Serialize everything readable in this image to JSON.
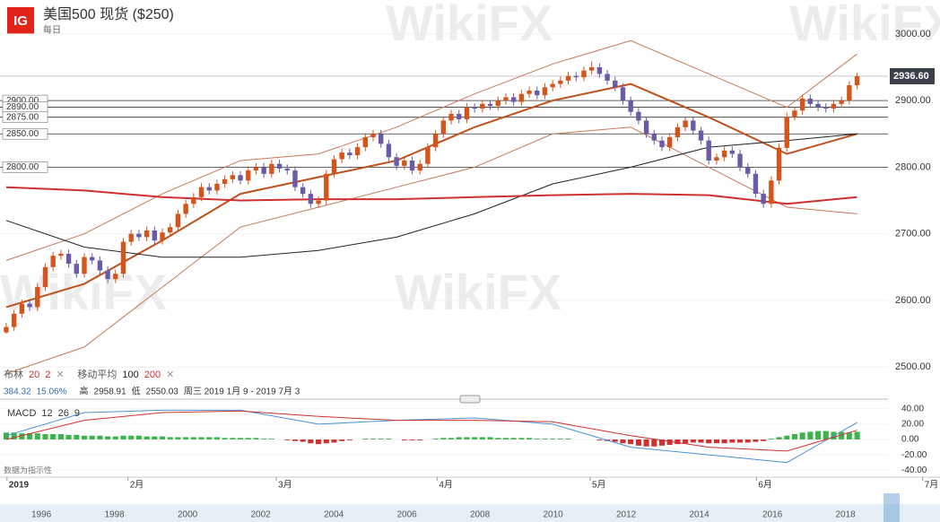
{
  "header": {
    "logo": "IG",
    "title": "美国500 现货 ($250)",
    "interval": "每日"
  },
  "watermark": "WikiFX",
  "chart_data": [
    {
      "type": "candlestick",
      "up_color": "#d4541c",
      "down_color": "#6a5aa8",
      "xlim": [
        -0.8,
        118.7
      ],
      "ylim": [
        2472,
        3051
      ],
      "xticks": [
        {
          "value": 0.1,
          "label": "2019"
        },
        {
          "value": 15.6,
          "label": "2月"
        },
        {
          "value": 34.6,
          "label": "3月"
        },
        {
          "value": 55.2,
          "label": "4月"
        },
        {
          "value": 74.8,
          "label": "5月"
        },
        {
          "value": 96.1,
          "label": "6月"
        },
        {
          "value": 117.4,
          "label": "7月"
        }
      ],
      "yticks": [
        {
          "value": 3000,
          "label": "3000.00"
        },
        {
          "value": 2900,
          "label": "2900.00"
        },
        {
          "value": 2800,
          "label": "2800.00"
        },
        {
          "value": 2700,
          "label": "2700.00"
        },
        {
          "value": 2600,
          "label": "2600.00"
        },
        {
          "value": 2500,
          "label": "2500.00"
        }
      ],
      "hlines": [
        {
          "value": 2900,
          "label": "2900.00"
        },
        {
          "value": 2890,
          "label": "2890.00"
        },
        {
          "value": 2875,
          "label": "2875.00"
        },
        {
          "value": 2850,
          "label": "2850.00"
        },
        {
          "value": 2800,
          "label": "2800.00"
        }
      ],
      "last_price": {
        "value": 2936.6,
        "label": "2936.60"
      },
      "candles": [
        [
          2552,
          2566,
          2550.03,
          2560
        ],
        [
          2560,
          2586,
          2554,
          2580
        ],
        [
          2580,
          2601,
          2574,
          2595
        ],
        [
          2595,
          2601,
          2584,
          2590
        ],
        [
          2590,
          2626,
          2584,
          2620
        ],
        [
          2620,
          2656,
          2614,
          2650
        ],
        [
          2650,
          2673,
          2644,
          2667
        ],
        [
          2667,
          2676,
          2661,
          2670
        ],
        [
          2670,
          2676,
          2649,
          2655
        ],
        [
          2655,
          2661,
          2634,
          2640
        ],
        [
          2640,
          2671,
          2634,
          2665
        ],
        [
          2665,
          2671,
          2654,
          2660
        ],
        [
          2660,
          2666,
          2639,
          2645
        ],
        [
          2645,
          2651,
          2626,
          2632
        ],
        [
          2632,
          2646,
          2626,
          2640
        ],
        [
          2640,
          2694,
          2634,
          2688
        ],
        [
          2688,
          2706,
          2682,
          2700
        ],
        [
          2700,
          2706,
          2689,
          2695
        ],
        [
          2695,
          2711,
          2689,
          2705
        ],
        [
          2705,
          2711,
          2684,
          2690
        ],
        [
          2690,
          2708,
          2684,
          2702
        ],
        [
          2702,
          2716,
          2696,
          2710
        ],
        [
          2710,
          2736,
          2704,
          2730
        ],
        [
          2730,
          2751,
          2724,
          2745
        ],
        [
          2745,
          2761,
          2739,
          2755
        ],
        [
          2755,
          2776,
          2749,
          2770
        ],
        [
          2770,
          2776,
          2759,
          2765
        ],
        [
          2765,
          2781,
          2759,
          2775
        ],
        [
          2775,
          2788,
          2769,
          2782
        ],
        [
          2782,
          2794,
          2776,
          2788
        ],
        [
          2788,
          2794,
          2774,
          2780
        ],
        [
          2780,
          2801,
          2774,
          2795
        ],
        [
          2795,
          2806,
          2789,
          2800
        ],
        [
          2800,
          2806,
          2784,
          2790
        ],
        [
          2790,
          2811,
          2784,
          2805
        ],
        [
          2805,
          2811,
          2792,
          2798
        ],
        [
          2798,
          2804,
          2789,
          2795
        ],
        [
          2795,
          2801,
          2764,
          2770
        ],
        [
          2770,
          2776,
          2754,
          2760
        ],
        [
          2760,
          2766,
          2739,
          2745
        ],
        [
          2745,
          2756,
          2739,
          2750
        ],
        [
          2750,
          2796,
          2744,
          2790
        ],
        [
          2790,
          2818,
          2784,
          2812
        ],
        [
          2812,
          2828,
          2806,
          2822
        ],
        [
          2822,
          2828,
          2812,
          2818
        ],
        [
          2818,
          2836,
          2812,
          2830
        ],
        [
          2830,
          2851,
          2824,
          2845
        ],
        [
          2845,
          2856,
          2839,
          2850
        ],
        [
          2850,
          2856,
          2829,
          2835
        ],
        [
          2835,
          2841,
          2809,
          2815
        ],
        [
          2815,
          2821,
          2796,
          2802
        ],
        [
          2802,
          2816,
          2796,
          2810
        ],
        [
          2810,
          2816,
          2789,
          2795
        ],
        [
          2795,
          2811,
          2789,
          2805
        ],
        [
          2805,
          2836,
          2799,
          2830
        ],
        [
          2830,
          2856,
          2824,
          2850
        ],
        [
          2850,
          2876,
          2844,
          2870
        ],
        [
          2870,
          2886,
          2864,
          2880
        ],
        [
          2880,
          2886,
          2866,
          2872
        ],
        [
          2872,
          2896,
          2866,
          2890
        ],
        [
          2890,
          2896,
          2882,
          2888
        ],
        [
          2888,
          2901,
          2882,
          2895
        ],
        [
          2895,
          2901,
          2886,
          2892
        ],
        [
          2892,
          2906,
          2886,
          2900
        ],
        [
          2900,
          2911,
          2894,
          2905
        ],
        [
          2905,
          2911,
          2892,
          2898
        ],
        [
          2898,
          2916,
          2892,
          2910
        ],
        [
          2910,
          2921,
          2904,
          2915
        ],
        [
          2915,
          2921,
          2902,
          2908
        ],
        [
          2908,
          2926,
          2902,
          2920
        ],
        [
          2920,
          2931,
          2914,
          2925
        ],
        [
          2925,
          2936,
          2919,
          2930
        ],
        [
          2930,
          2943,
          2924,
          2937
        ],
        [
          2937,
          2943,
          2929,
          2935
        ],
        [
          2935,
          2951,
          2929,
          2945
        ],
        [
          2945,
          2958.91,
          2939,
          2950
        ],
        [
          2950,
          2956,
          2934,
          2940
        ],
        [
          2940,
          2946,
          2924,
          2930
        ],
        [
          2930,
          2936,
          2914,
          2920
        ],
        [
          2920,
          2926,
          2894,
          2900
        ],
        [
          2900,
          2906,
          2877,
          2883
        ],
        [
          2883,
          2889,
          2864,
          2870
        ],
        [
          2870,
          2876,
          2844,
          2850
        ],
        [
          2850,
          2856,
          2834,
          2840
        ],
        [
          2840,
          2846,
          2824,
          2830
        ],
        [
          2830,
          2851,
          2824,
          2845
        ],
        [
          2845,
          2866,
          2839,
          2860
        ],
        [
          2860,
          2876,
          2854,
          2870
        ],
        [
          2870,
          2876,
          2849,
          2855
        ],
        [
          2855,
          2861,
          2834,
          2840
        ],
        [
          2840,
          2846,
          2804,
          2810
        ],
        [
          2810,
          2821,
          2804,
          2815
        ],
        [
          2815,
          2831,
          2809,
          2825
        ],
        [
          2825,
          2831,
          2814,
          2820
        ],
        [
          2820,
          2826,
          2794,
          2800
        ],
        [
          2800,
          2806,
          2784,
          2790
        ],
        [
          2790,
          2796,
          2754,
          2760
        ],
        [
          2760,
          2766,
          2739,
          2745
        ],
        [
          2745,
          2786,
          2739,
          2780
        ],
        [
          2780,
          2835,
          2774,
          2829
        ],
        [
          2829,
          2882,
          2823,
          2876
        ],
        [
          2876,
          2891,
          2870,
          2885
        ],
        [
          2885,
          2909,
          2879,
          2903
        ],
        [
          2903,
          2909,
          2889,
          2895
        ],
        [
          2895,
          2901,
          2884,
          2890
        ],
        [
          2890,
          2896,
          2882,
          2888
        ],
        [
          2888,
          2901,
          2882,
          2895
        ],
        [
          2895,
          2906,
          2889,
          2900
        ],
        [
          2900,
          2929,
          2894,
          2923
        ],
        [
          2923,
          2942,
          2917,
          2936.6
        ]
      ],
      "lines": [
        {
          "color": "#c8785a",
          "width": 1,
          "x": [
            0,
            10,
            20,
            30,
            40,
            50,
            60,
            70,
            80,
            90,
            100,
            109
          ],
          "values": [
            2660,
            2700,
            2760,
            2810,
            2820,
            2860,
            2910,
            2955,
            2990,
            2940,
            2890,
            2970
          ]
        },
        {
          "color": "#c8785a",
          "width": 1,
          "x": [
            0,
            10,
            20,
            30,
            40,
            50,
            60,
            70,
            80,
            90,
            100,
            109
          ],
          "values": [
            2490,
            2530,
            2620,
            2710,
            2740,
            2770,
            2800,
            2850,
            2860,
            2800,
            2740,
            2730
          ]
        },
        {
          "color": "#c0501c",
          "width": 2,
          "x": [
            0,
            10,
            20,
            30,
            40,
            50,
            60,
            70,
            80,
            90,
            100,
            109
          ],
          "values": [
            2590,
            2625,
            2690,
            2760,
            2785,
            2810,
            2860,
            2900,
            2925,
            2875,
            2820,
            2850
          ]
        },
        {
          "color": "#222222",
          "width": 1,
          "x": [
            0,
            10,
            20,
            30,
            40,
            50,
            60,
            70,
            80,
            90,
            100,
            109
          ],
          "values": [
            2720,
            2680,
            2665,
            2665,
            2675,
            2695,
            2730,
            2775,
            2800,
            2830,
            2840,
            2850
          ]
        },
        {
          "color": "#d03030",
          "width": 2,
          "x": [
            0,
            10,
            20,
            30,
            40,
            50,
            60,
            70,
            80,
            90,
            100,
            109
          ],
          "values": [
            2770,
            2765,
            2755,
            2750,
            2752,
            2752,
            2755,
            2758,
            2760,
            2758,
            2745,
            2755
          ]
        }
      ],
      "legend": [
        {
          "label": "布林",
          "params": [
            20,
            2
          ]
        },
        {
          "label": "移动平均",
          "params": [
            100,
            200
          ]
        }
      ],
      "stats": {
        "change": 384.32,
        "change_pct": "15.06%",
        "high_label": "高",
        "high": 2958.91,
        "low_label": "低",
        "low": 2550.03,
        "range": "周三 2019 1月 9 - 2019 7月 3"
      }
    },
    {
      "type": "macd",
      "title": "MACD",
      "params": [
        12,
        26,
        9
      ],
      "xlim": [
        -0.8,
        118.7
      ],
      "ylim": [
        -49,
        49
      ],
      "yticks": [
        {
          "value": 40,
          "label": "40.00"
        },
        {
          "value": 20,
          "label": "20.00"
        },
        {
          "value": 0,
          "label": "0.00"
        },
        {
          "value": -20,
          "label": "-20.00"
        },
        {
          "value": -40,
          "label": "-40.00"
        }
      ],
      "pos_color": "#3cb44b",
      "neg_color": "#d03030",
      "histogram": [
        9,
        9,
        8,
        8,
        8,
        7,
        7,
        7,
        6,
        6,
        5,
        5,
        5,
        4,
        4,
        5,
        5,
        5,
        4,
        4,
        4,
        3,
        3,
        3,
        3,
        3,
        3,
        3,
        2,
        2,
        2,
        2,
        2,
        1,
        1,
        0,
        -1,
        -2,
        -3,
        -5,
        -6,
        -5,
        -4,
        -2,
        -1,
        0,
        1,
        1,
        1,
        1,
        0,
        -1,
        -1,
        -1,
        0,
        1,
        2,
        2,
        3,
        3,
        3,
        3,
        3,
        2,
        2,
        2,
        2,
        2,
        1,
        1,
        1,
        1,
        1,
        0,
        0,
        0,
        -1,
        -2,
        -3,
        -5,
        -6,
        -8,
        -9,
        -9,
        -8,
        -7,
        -6,
        -5,
        -4,
        -4,
        -5,
        -5,
        -5,
        -4,
        -4,
        -4,
        -3,
        -2,
        1,
        3,
        5,
        7,
        9,
        10,
        11,
        11,
        10,
        10,
        9,
        10
      ],
      "lines": [
        {
          "color": "#4a90d9",
          "x": [
            0,
            10,
            20,
            30,
            40,
            50,
            60,
            70,
            80,
            90,
            100,
            109
          ],
          "values": [
            5,
            35,
            38,
            38,
            20,
            25,
            28,
            20,
            -10,
            -20,
            -30,
            22
          ]
        },
        {
          "color": "#d03030",
          "x": [
            0,
            10,
            20,
            30,
            40,
            50,
            60,
            70,
            80,
            90,
            100,
            109
          ],
          "values": [
            0,
            25,
            35,
            37,
            30,
            25,
            25,
            23,
            5,
            -10,
            -15,
            12
          ]
        }
      ],
      "note": "数据为指示性"
    }
  ],
  "navigator": {
    "years": [
      "1996",
      "1998",
      "2000",
      "2002",
      "2004",
      "2006",
      "2008",
      "2010",
      "2012",
      "2014",
      "2016",
      "2018"
    ]
  }
}
